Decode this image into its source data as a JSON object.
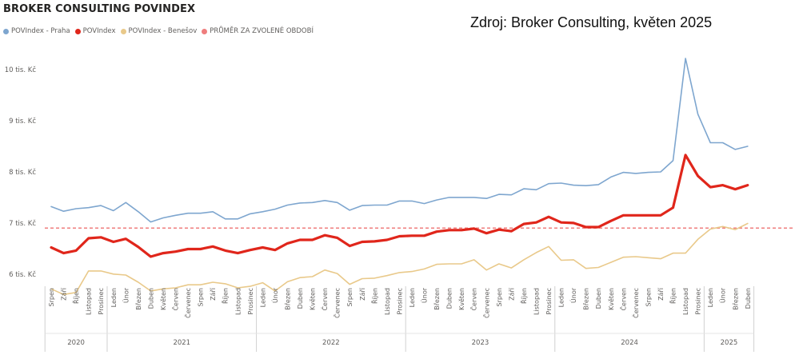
{
  "header": {
    "title": "BROKER CONSULTING POVINDEX",
    "source": "Zdroj: Broker Consulting, květen 2025"
  },
  "legend": [
    {
      "label": "POVIndex - Praha",
      "color": "#7ea6cf"
    },
    {
      "label": "POVIndex",
      "color": "#e0261b"
    },
    {
      "label": "POVIndex - Benešov",
      "color": "#e9c98a"
    },
    {
      "label": "PRŮMĚR ZA ZVOLENÉ OBDOBÍ",
      "color": "#ef7d7d"
    }
  ],
  "chart_data": {
    "type": "line",
    "y_ticks": [
      {
        "value": 6,
        "label": "6 tis. Kč"
      },
      {
        "value": 7,
        "label": "7 tis. Kč"
      },
      {
        "value": 8,
        "label": "8 tis. Kč"
      },
      {
        "value": 9,
        "label": "9 tis. Kč"
      },
      {
        "value": 10,
        "label": "10 tis. Kč"
      }
    ],
    "ylim": [
      5.6,
      10.3
    ],
    "categories": [
      "Srpen",
      "Září",
      "Říjen",
      "Listopad",
      "Prosinec",
      "Leden",
      "Únor",
      "Březen",
      "Duben",
      "Květen",
      "Červen",
      "Červenec",
      "Srpen",
      "Září",
      "Říjen",
      "Listopad",
      "Prosinec",
      "Leden",
      "Únor",
      "Březen",
      "Duben",
      "Květen",
      "Červen",
      "Červenec",
      "Srpen",
      "Září",
      "Říjen",
      "Listopad",
      "Prosinec",
      "Leden",
      "Únor",
      "Březen",
      "Duben",
      "Květen",
      "Červen",
      "Červenec",
      "Srpen",
      "Září",
      "Říjen",
      "Listopad",
      "Prosinec",
      "Leden",
      "Únor",
      "Březen",
      "Duben",
      "Květen",
      "Červen",
      "Červenec",
      "Srpen",
      "Září",
      "Říjen",
      "Listopad",
      "Prosinec",
      "Leden",
      "Únor",
      "Březen",
      "Duben"
    ],
    "years": [
      {
        "label": "2020",
        "count": 5
      },
      {
        "label": "2021",
        "count": 12
      },
      {
        "label": "2022",
        "count": 12
      },
      {
        "label": "2023",
        "count": 12
      },
      {
        "label": "2024",
        "count": 12
      },
      {
        "label": "2025",
        "count": 4
      }
    ],
    "average": 6.9,
    "series": [
      {
        "name": "POVIndex - Praha",
        "color": "#7ea6cf",
        "width": 1.6,
        "values": [
          7.32,
          7.23,
          7.28,
          7.3,
          7.34,
          7.24,
          7.4,
          7.22,
          7.02,
          7.1,
          7.15,
          7.19,
          7.19,
          7.22,
          7.08,
          7.08,
          7.18,
          7.22,
          7.27,
          7.35,
          7.39,
          7.4,
          7.44,
          7.4,
          7.25,
          7.34,
          7.35,
          7.35,
          7.43,
          7.43,
          7.38,
          7.45,
          7.5,
          7.5,
          7.5,
          7.48,
          7.56,
          7.55,
          7.67,
          7.65,
          7.77,
          7.78,
          7.74,
          7.73,
          7.75,
          7.9,
          7.99,
          7.97,
          7.99,
          8.0,
          8.22,
          10.22,
          9.13,
          8.57,
          8.57,
          8.44,
          8.5
        ]
      },
      {
        "name": "POVIndex",
        "color": "#e0261b",
        "width": 3.2,
        "values": [
          6.52,
          6.41,
          6.46,
          6.7,
          6.72,
          6.63,
          6.69,
          6.53,
          6.34,
          6.41,
          6.44,
          6.49,
          6.49,
          6.54,
          6.46,
          6.41,
          6.47,
          6.52,
          6.47,
          6.6,
          6.67,
          6.67,
          6.76,
          6.71,
          6.55,
          6.63,
          6.64,
          6.67,
          6.74,
          6.75,
          6.75,
          6.83,
          6.86,
          6.86,
          6.89,
          6.8,
          6.87,
          6.84,
          6.98,
          7.01,
          7.12,
          7.01,
          7.0,
          6.92,
          6.92,
          7.04,
          7.15,
          7.15,
          7.15,
          7.15,
          7.3,
          8.33,
          7.92,
          7.7,
          7.74,
          7.66,
          7.74
        ]
      },
      {
        "name": "POVIndex - Benešov",
        "color": "#e9c98a",
        "width": 1.6,
        "values": [
          5.71,
          5.6,
          5.64,
          6.06,
          6.06,
          6.0,
          5.98,
          5.84,
          5.67,
          5.71,
          5.73,
          5.79,
          5.79,
          5.84,
          5.81,
          5.73,
          5.76,
          5.83,
          5.67,
          5.85,
          5.93,
          5.95,
          6.08,
          6.01,
          5.8,
          5.91,
          5.92,
          5.97,
          6.03,
          6.05,
          6.1,
          6.19,
          6.2,
          6.2,
          6.28,
          6.08,
          6.2,
          6.12,
          6.28,
          6.42,
          6.54,
          6.27,
          6.28,
          6.11,
          6.13,
          6.23,
          6.33,
          6.34,
          6.32,
          6.3,
          6.41,
          6.41,
          6.68,
          6.88,
          6.93,
          6.87,
          6.99
        ]
      }
    ]
  }
}
